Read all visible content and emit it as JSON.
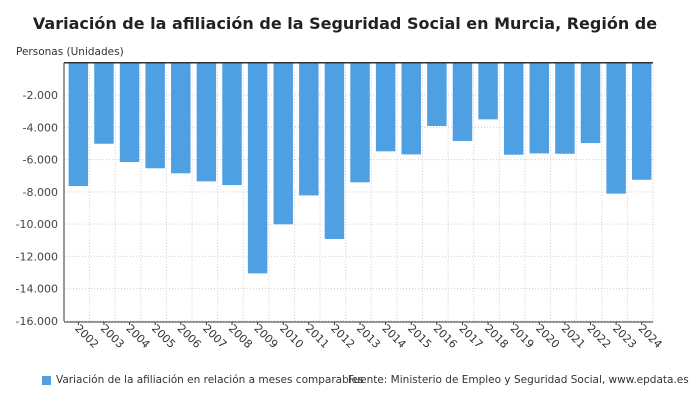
{
  "chart_data": {
    "type": "bar",
    "title": "Variación de la afiliación de la Seguridad Social en Murcia, Región de",
    "ylabel": "Personas (Unidades)",
    "xlabel": "",
    "categories": [
      "2002",
      "2003",
      "2004",
      "2005",
      "2006",
      "2007",
      "2008",
      "2009",
      "2010",
      "2011",
      "2012",
      "2013",
      "2014",
      "2015",
      "2016",
      "2017",
      "2018",
      "2019",
      "2020",
      "2021",
      "2022",
      "2023",
      "2024"
    ],
    "series": [
      {
        "name": "Variación de la afiliación en relación a meses comparables",
        "values": [
          -7640,
          -5020,
          -6150,
          -6540,
          -6850,
          -7350,
          -7580,
          -13050,
          -10010,
          -8220,
          -10920,
          -7410,
          -5490,
          -5680,
          -3920,
          -4850,
          -3510,
          -5700,
          -5620,
          -5640,
          -4980,
          -8110,
          -7250
        ]
      }
    ],
    "ylim": [
      -16000,
      0
    ],
    "yticks": [
      -2000,
      -4000,
      -6000,
      -8000,
      -10000,
      -12000,
      -14000,
      -16000
    ],
    "ytick_labels": [
      "-2.000",
      "-4.000",
      "-6.000",
      "-8.000",
      "-10.000",
      "-12.000",
      "-14.000",
      "-16.000"
    ],
    "grid": true,
    "legend_position": "bottom-left",
    "bar_color": "#4f9fe3"
  },
  "source": "Fuente: Ministerio de Empleo y Seguridad Social, www.epdata.es"
}
